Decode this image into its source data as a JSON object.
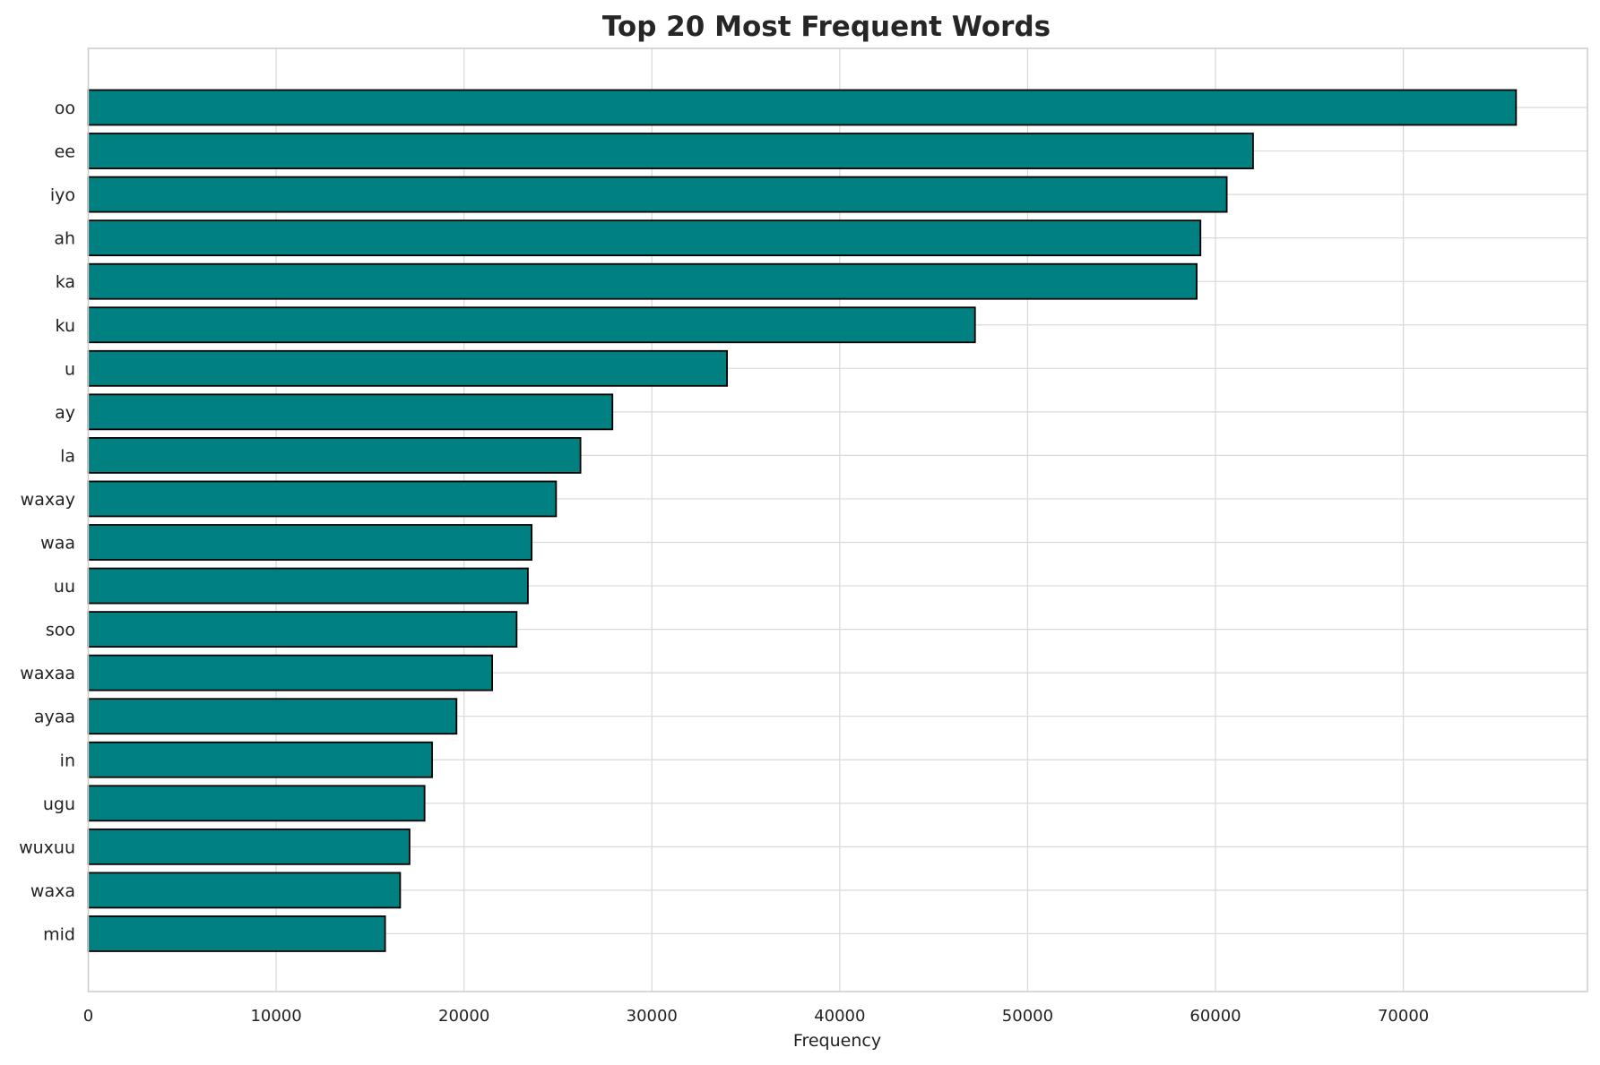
{
  "chart_data": {
    "type": "bar",
    "orientation": "horizontal",
    "title": "Top 20 Most Frequent Words",
    "xlabel": "Frequency",
    "ylabel": "",
    "xlim": [
      0,
      79800
    ],
    "xticks": [
      0,
      10000,
      20000,
      30000,
      40000,
      50000,
      60000,
      70000
    ],
    "xtick_labels": [
      "0",
      "10000",
      "20000",
      "30000",
      "40000",
      "50000",
      "60000",
      "70000"
    ],
    "categories": [
      "oo",
      "ee",
      "iyo",
      "ah",
      "ka",
      "ku",
      "u",
      "ay",
      "la",
      "waxay",
      "waa",
      "uu",
      "soo",
      "waxaa",
      "ayaa",
      "in",
      "ugu",
      "wuxuu",
      "waxa",
      "mid"
    ],
    "values": [
      76000,
      62000,
      60600,
      59200,
      59000,
      47200,
      34000,
      27900,
      26200,
      24900,
      23600,
      23400,
      22800,
      21500,
      19600,
      18300,
      17900,
      17100,
      16600,
      15800
    ],
    "grid": true,
    "legend": "none",
    "colors": {
      "bar_fill": "#008080",
      "bar_edge": "#000000",
      "grid": "#d9d9d9",
      "spine": "#cccccc",
      "text": "#222222",
      "title": "#262626"
    }
  }
}
